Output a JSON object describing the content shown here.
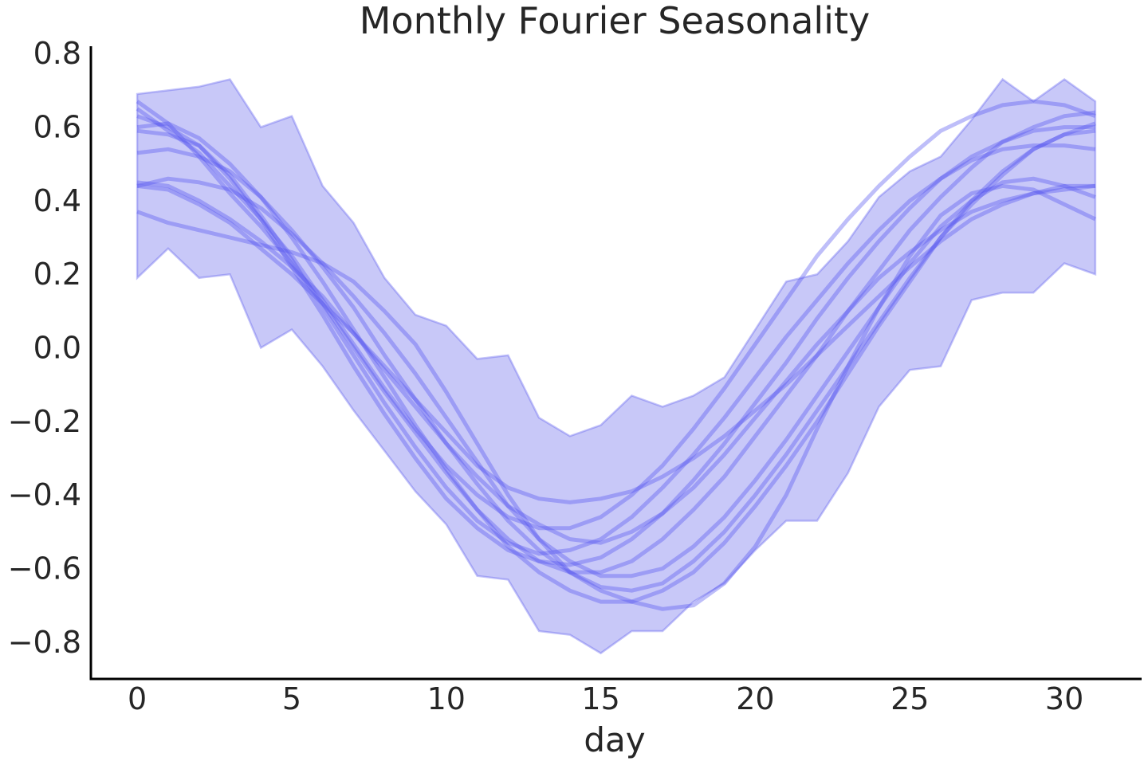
{
  "chart_data": {
    "type": "line",
    "title": "Monthly Fourier Seasonality",
    "xlabel": "day",
    "ylabel": "",
    "xlim": [
      -1.5,
      32.5
    ],
    "ylim": [
      -0.9,
      0.82
    ],
    "x_ticks": [
      0,
      5,
      10,
      15,
      20,
      25,
      30
    ],
    "x_tick_labels": [
      "0",
      "5",
      "10",
      "15",
      "20",
      "25",
      "30"
    ],
    "y_ticks": [
      0.8,
      0.6,
      0.4,
      0.2,
      0.0,
      -0.2,
      -0.4,
      -0.6,
      -0.8
    ],
    "y_tick_labels": [
      "0.8",
      "0.6",
      "0.4",
      "0.2",
      "0.0",
      "−0.2",
      "−0.4",
      "−0.6",
      "−0.8"
    ],
    "grid": false,
    "line_color": "#5555ee",
    "band_color": "#c8c8f8",
    "band": {
      "x": [
        0,
        1,
        2,
        3,
        4,
        5,
        6,
        7,
        8,
        9,
        10,
        11,
        12,
        13,
        14,
        15,
        16,
        17,
        18,
        19,
        20,
        21,
        22,
        23,
        24,
        25,
        26,
        27,
        28,
        29,
        30,
        31
      ],
      "upper": [
        0.69,
        0.7,
        0.71,
        0.73,
        0.6,
        0.63,
        0.44,
        0.34,
        0.19,
        0.09,
        0.06,
        -0.03,
        -0.02,
        -0.19,
        -0.24,
        -0.21,
        -0.13,
        -0.16,
        -0.13,
        -0.08,
        0.05,
        0.18,
        0.2,
        0.29,
        0.41,
        0.48,
        0.52,
        0.62,
        0.73,
        0.67,
        0.73,
        0.67
      ],
      "lower": [
        0.19,
        0.27,
        0.19,
        0.2,
        0.0,
        0.05,
        -0.05,
        -0.17,
        -0.28,
        -0.39,
        -0.48,
        -0.62,
        -0.63,
        -0.77,
        -0.78,
        -0.83,
        -0.77,
        -0.77,
        -0.69,
        -0.64,
        -0.55,
        -0.47,
        -0.47,
        -0.34,
        -0.16,
        -0.06,
        -0.05,
        0.13,
        0.15,
        0.15,
        0.23,
        0.2
      ]
    },
    "series": [
      {
        "x": [
          0,
          1,
          2,
          3,
          4,
          5,
          6,
          7,
          8,
          9,
          10,
          11,
          12,
          13,
          14,
          15,
          16,
          17,
          18,
          19,
          20,
          21,
          22,
          23,
          24,
          25,
          26,
          27,
          28,
          29,
          30,
          31
        ],
        "values": [
          0.67,
          0.61,
          0.52,
          0.42,
          0.33,
          0.23,
          0.12,
          0.0,
          -0.12,
          -0.23,
          -0.34,
          -0.44,
          -0.52,
          -0.58,
          -0.61,
          -0.61,
          -0.58,
          -0.52,
          -0.44,
          -0.35,
          -0.24,
          -0.13,
          -0.02,
          0.1,
          0.21,
          0.32,
          0.41,
          0.49,
          0.56,
          0.6,
          0.63,
          0.64
        ]
      },
      {
        "x": [
          0,
          1,
          2,
          3,
          4,
          5,
          6,
          7,
          8,
          9,
          10,
          11,
          12,
          13,
          14,
          15,
          16,
          17,
          18,
          19,
          20,
          21,
          22,
          23,
          24,
          25,
          26,
          27,
          28,
          29,
          30,
          31
        ],
        "values": [
          0.65,
          0.59,
          0.53,
          0.44,
          0.35,
          0.25,
          0.13,
          0.01,
          -0.11,
          -0.22,
          -0.32,
          -0.4,
          -0.46,
          -0.49,
          -0.49,
          -0.46,
          -0.4,
          -0.32,
          -0.22,
          -0.11,
          0.01,
          0.13,
          0.25,
          0.35,
          0.44,
          0.52,
          0.59,
          0.63,
          0.66,
          0.67,
          0.66,
          0.63
        ]
      },
      {
        "x": [
          0,
          1,
          2,
          3,
          4,
          5,
          6,
          7,
          8,
          9,
          10,
          11,
          12,
          13,
          14,
          15,
          16,
          17,
          18,
          19,
          20,
          21,
          22,
          23,
          24,
          25,
          26,
          27,
          28,
          29,
          30,
          31
        ],
        "values": [
          0.6,
          0.61,
          0.57,
          0.5,
          0.41,
          0.3,
          0.18,
          0.05,
          -0.08,
          -0.21,
          -0.33,
          -0.44,
          -0.54,
          -0.61,
          -0.66,
          -0.69,
          -0.69,
          -0.66,
          -0.61,
          -0.53,
          -0.43,
          -0.32,
          -0.2,
          -0.07,
          0.06,
          0.18,
          0.3,
          0.4,
          0.48,
          0.54,
          0.58,
          0.59
        ]
      },
      {
        "x": [
          0,
          1,
          2,
          3,
          4,
          5,
          6,
          7,
          8,
          9,
          10,
          11,
          12,
          13,
          14,
          15,
          16,
          17,
          18,
          19,
          20,
          21,
          22,
          23,
          24,
          25,
          26,
          27,
          28,
          29,
          30,
          31
        ],
        "values": [
          0.59,
          0.58,
          0.55,
          0.47,
          0.36,
          0.24,
          0.11,
          -0.02,
          -0.15,
          -0.27,
          -0.38,
          -0.47,
          -0.53,
          -0.56,
          -0.55,
          -0.52,
          -0.46,
          -0.38,
          -0.29,
          -0.19,
          -0.08,
          0.03,
          0.13,
          0.23,
          0.32,
          0.4,
          0.46,
          0.51,
          0.54,
          0.55,
          0.55,
          0.54
        ]
      },
      {
        "x": [
          0,
          1,
          2,
          3,
          4,
          5,
          6,
          7,
          8,
          9,
          10,
          11,
          12,
          13,
          14,
          15,
          16,
          17,
          18,
          19,
          20,
          21,
          22,
          23,
          24,
          25,
          26,
          27,
          28,
          29,
          30,
          31
        ],
        "values": [
          0.53,
          0.54,
          0.52,
          0.48,
          0.41,
          0.32,
          0.22,
          0.11,
          -0.02,
          -0.14,
          -0.26,
          -0.37,
          -0.47,
          -0.55,
          -0.61,
          -0.65,
          -0.66,
          -0.64,
          -0.58,
          -0.5,
          -0.4,
          -0.29,
          -0.17,
          -0.05,
          0.07,
          0.19,
          0.3,
          0.39,
          0.47,
          0.54,
          0.58,
          0.61
        ]
      },
      {
        "x": [
          0,
          1,
          2,
          3,
          4,
          5,
          6,
          7,
          8,
          9,
          10,
          11,
          12,
          13,
          14,
          15,
          16,
          17,
          18,
          19,
          20,
          21,
          22,
          23,
          24,
          25,
          26,
          27,
          28,
          29,
          30,
          31
        ],
        "values": [
          0.45,
          0.44,
          0.4,
          0.35,
          0.29,
          0.22,
          0.14,
          0.04,
          -0.06,
          -0.16,
          -0.26,
          -0.35,
          -0.43,
          -0.48,
          -0.52,
          -0.53,
          -0.5,
          -0.45,
          -0.38,
          -0.29,
          -0.19,
          -0.09,
          0.01,
          0.1,
          0.19,
          0.26,
          0.32,
          0.37,
          0.4,
          0.42,
          0.43,
          0.44
        ]
      },
      {
        "x": [
          0,
          1,
          2,
          3,
          4,
          5,
          6,
          7,
          8,
          9,
          10,
          11,
          12,
          13,
          14,
          15,
          16,
          17,
          18,
          19,
          20,
          21,
          22,
          23,
          24,
          25,
          26,
          27,
          28,
          29,
          30,
          31
        ],
        "values": [
          0.44,
          0.46,
          0.45,
          0.43,
          0.38,
          0.31,
          0.23,
          0.14,
          0.04,
          -0.07,
          -0.19,
          -0.31,
          -0.43,
          -0.52,
          -0.58,
          -0.62,
          -0.62,
          -0.6,
          -0.54,
          -0.46,
          -0.36,
          -0.25,
          -0.13,
          -0.01,
          0.11,
          0.23,
          0.33,
          0.4,
          0.45,
          0.46,
          0.44,
          0.41
        ]
      },
      {
        "x": [
          0,
          1,
          2,
          3,
          4,
          5,
          6,
          7,
          8,
          9,
          10,
          11,
          12,
          13,
          14,
          15,
          16,
          17,
          18,
          19,
          20,
          21,
          22,
          23,
          24,
          25,
          26,
          27,
          28,
          29,
          30,
          31
        ],
        "values": [
          0.37,
          0.34,
          0.32,
          0.3,
          0.28,
          0.26,
          0.23,
          0.18,
          0.1,
          0.01,
          -0.12,
          -0.26,
          -0.4,
          -0.52,
          -0.61,
          -0.66,
          -0.69,
          -0.71,
          -0.7,
          -0.64,
          -0.54,
          -0.4,
          -0.22,
          -0.05,
          0.11,
          0.25,
          0.36,
          0.42,
          0.44,
          0.43,
          0.39,
          0.35
        ]
      },
      {
        "x": [
          0,
          1,
          2,
          3,
          4,
          5,
          6,
          7,
          8,
          9,
          10,
          11,
          12,
          13,
          14,
          15,
          16,
          17,
          18,
          19,
          20,
          21,
          22,
          23,
          24,
          25,
          26,
          27,
          28,
          29,
          30,
          31
        ],
        "values": [
          0.63,
          0.6,
          0.55,
          0.46,
          0.35,
          0.22,
          0.09,
          -0.05,
          -0.18,
          -0.3,
          -0.41,
          -0.49,
          -0.55,
          -0.58,
          -0.59,
          -0.57,
          -0.52,
          -0.45,
          -0.36,
          -0.26,
          -0.15,
          -0.04,
          0.08,
          0.19,
          0.29,
          0.38,
          0.46,
          0.52,
          0.56,
          0.59,
          0.6,
          0.6
        ]
      },
      {
        "x": [
          0,
          1,
          2,
          3,
          4,
          5,
          6,
          7,
          8,
          9,
          10,
          11,
          12,
          13,
          14,
          15,
          16,
          17,
          18,
          19,
          20,
          21,
          22,
          23,
          24,
          25,
          26,
          27,
          28,
          29,
          30,
          31
        ],
        "values": [
          0.44,
          0.43,
          0.39,
          0.34,
          0.27,
          0.2,
          0.12,
          0.04,
          -0.05,
          -0.14,
          -0.23,
          -0.32,
          -0.38,
          -0.41,
          -0.42,
          -0.41,
          -0.39,
          -0.35,
          -0.3,
          -0.24,
          -0.17,
          -0.1,
          -0.02,
          0.06,
          0.14,
          0.22,
          0.29,
          0.35,
          0.39,
          0.42,
          0.44,
          0.44
        ]
      }
    ]
  }
}
